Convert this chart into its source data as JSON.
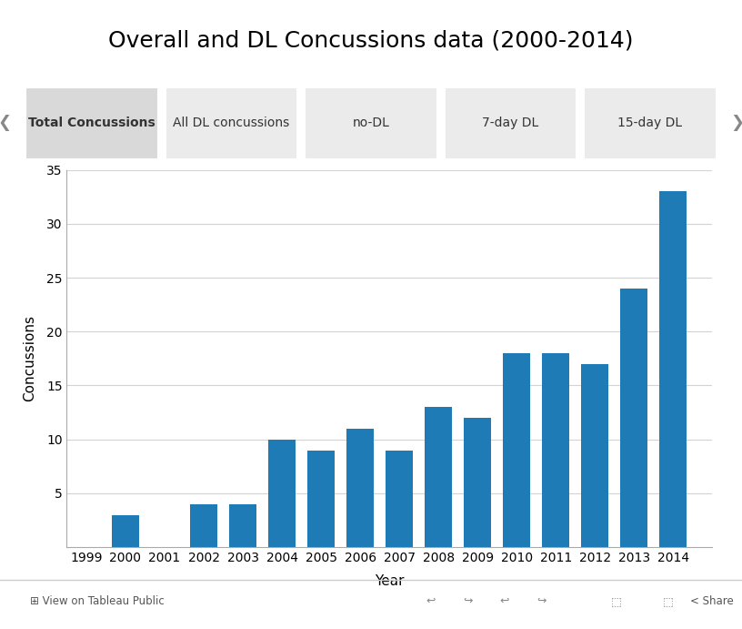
{
  "title": "Overall and DL Concussions data (2000-2014)",
  "years": [
    1999,
    2000,
    2001,
    2002,
    2003,
    2004,
    2005,
    2006,
    2007,
    2008,
    2009,
    2010,
    2011,
    2012,
    2013,
    2014
  ],
  "values": [
    0,
    3,
    0,
    4,
    4,
    10,
    9,
    11,
    9,
    13,
    12,
    18,
    18,
    17,
    24,
    33
  ],
  "bar_color": "#1f7bb6",
  "ylabel": "Concussions",
  "xlabel": "Year",
  "ylim": [
    0,
    35
  ],
  "yticks": [
    5,
    10,
    15,
    20,
    25,
    30,
    35
  ],
  "background_color": "#ffffff",
  "plot_bg_color": "#ffffff",
  "grid_color": "#d3d3d3",
  "tabs": [
    "Total Concussions",
    "All DL concussions",
    "no-DL",
    "7-day DL",
    "15-day DL"
  ],
  "active_tab": 0,
  "tab_bg_active": "#d9d9d9",
  "tab_bg_inactive": "#ebebeb",
  "tab_text_active_bold": true,
  "title_fontsize": 18,
  "axis_label_fontsize": 11,
  "tick_fontsize": 10,
  "tab_fontsize": 10
}
